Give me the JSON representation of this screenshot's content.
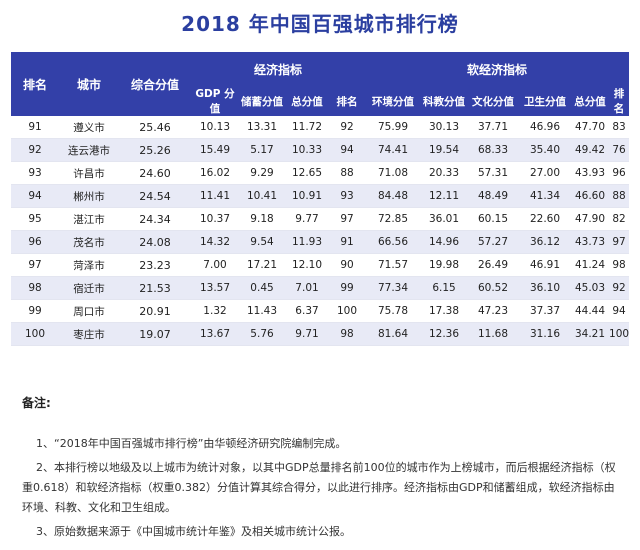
{
  "title": "2018 年中国百强城市排行榜",
  "table": {
    "headers": {
      "rank": "排名",
      "city": "城市",
      "composite": "综合分值",
      "economic_group": "经济指标",
      "soft_group": "软经济指标",
      "economic_cols": [
        "GDP 分值",
        "储蓄分值",
        "总分值",
        "排名"
      ],
      "soft_cols": [
        "环境分值",
        "科教分值",
        "文化分值",
        "卫生分值",
        "总分值",
        "排名"
      ]
    },
    "rows": [
      [
        "91",
        "遵义市",
        "25.46",
        "10.13",
        "13.31",
        "11.72",
        "92",
        "75.99",
        "30.13",
        "37.71",
        "46.96",
        "47.70",
        "83"
      ],
      [
        "92",
        "连云港市",
        "25.26",
        "15.49",
        "5.17",
        "10.33",
        "94",
        "74.41",
        "19.54",
        "68.33",
        "35.40",
        "49.42",
        "76"
      ],
      [
        "93",
        "许昌市",
        "24.60",
        "16.02",
        "9.29",
        "12.65",
        "88",
        "71.08",
        "20.33",
        "57.31",
        "27.00",
        "43.93",
        "96"
      ],
      [
        "94",
        "郴州市",
        "24.54",
        "11.41",
        "10.41",
        "10.91",
        "93",
        "84.48",
        "12.11",
        "48.49",
        "41.34",
        "46.60",
        "88"
      ],
      [
        "95",
        "湛江市",
        "24.34",
        "10.37",
        "9.18",
        "9.77",
        "97",
        "72.85",
        "36.01",
        "60.15",
        "22.60",
        "47.90",
        "82"
      ],
      [
        "96",
        "茂名市",
        "24.08",
        "14.32",
        "9.54",
        "11.93",
        "91",
        "66.56",
        "14.96",
        "57.27",
        "36.12",
        "43.73",
        "97"
      ],
      [
        "97",
        "菏泽市",
        "23.23",
        "7.00",
        "17.21",
        "12.10",
        "90",
        "71.57",
        "19.98",
        "26.49",
        "46.91",
        "41.24",
        "98"
      ],
      [
        "98",
        "宿迁市",
        "21.53",
        "13.57",
        "0.45",
        "7.01",
        "99",
        "77.34",
        "6.15",
        "60.52",
        "36.10",
        "45.03",
        "92"
      ],
      [
        "99",
        "周口市",
        "20.91",
        "1.32",
        "11.43",
        "6.37",
        "100",
        "75.78",
        "17.38",
        "47.23",
        "37.37",
        "44.44",
        "94"
      ],
      [
        "100",
        "枣庄市",
        "19.07",
        "13.67",
        "5.76",
        "9.71",
        "98",
        "81.64",
        "12.36",
        "11.68",
        "31.16",
        "34.21",
        "100"
      ]
    ]
  },
  "notes": {
    "title": "备注:",
    "items": [
      "1、“2018年中国百强城市排行榜”由华顿经济研究院编制完成。",
      "2、本排行榜以地级及以上城市为统计对象，以其中GDP总量排名前100位的城市作为上榜城市，而后根据经济指标（权重0.618）和软经济指标（权重0.382）分值计算其综合得分，以此进行排序。经济指标由GDP和储蓄组成，软经济指标由环境、科教、文化和卫生组成。",
      "3、原始数据来源于《中国城市统计年鉴》及相关城市统计公报。"
    ]
  }
}
